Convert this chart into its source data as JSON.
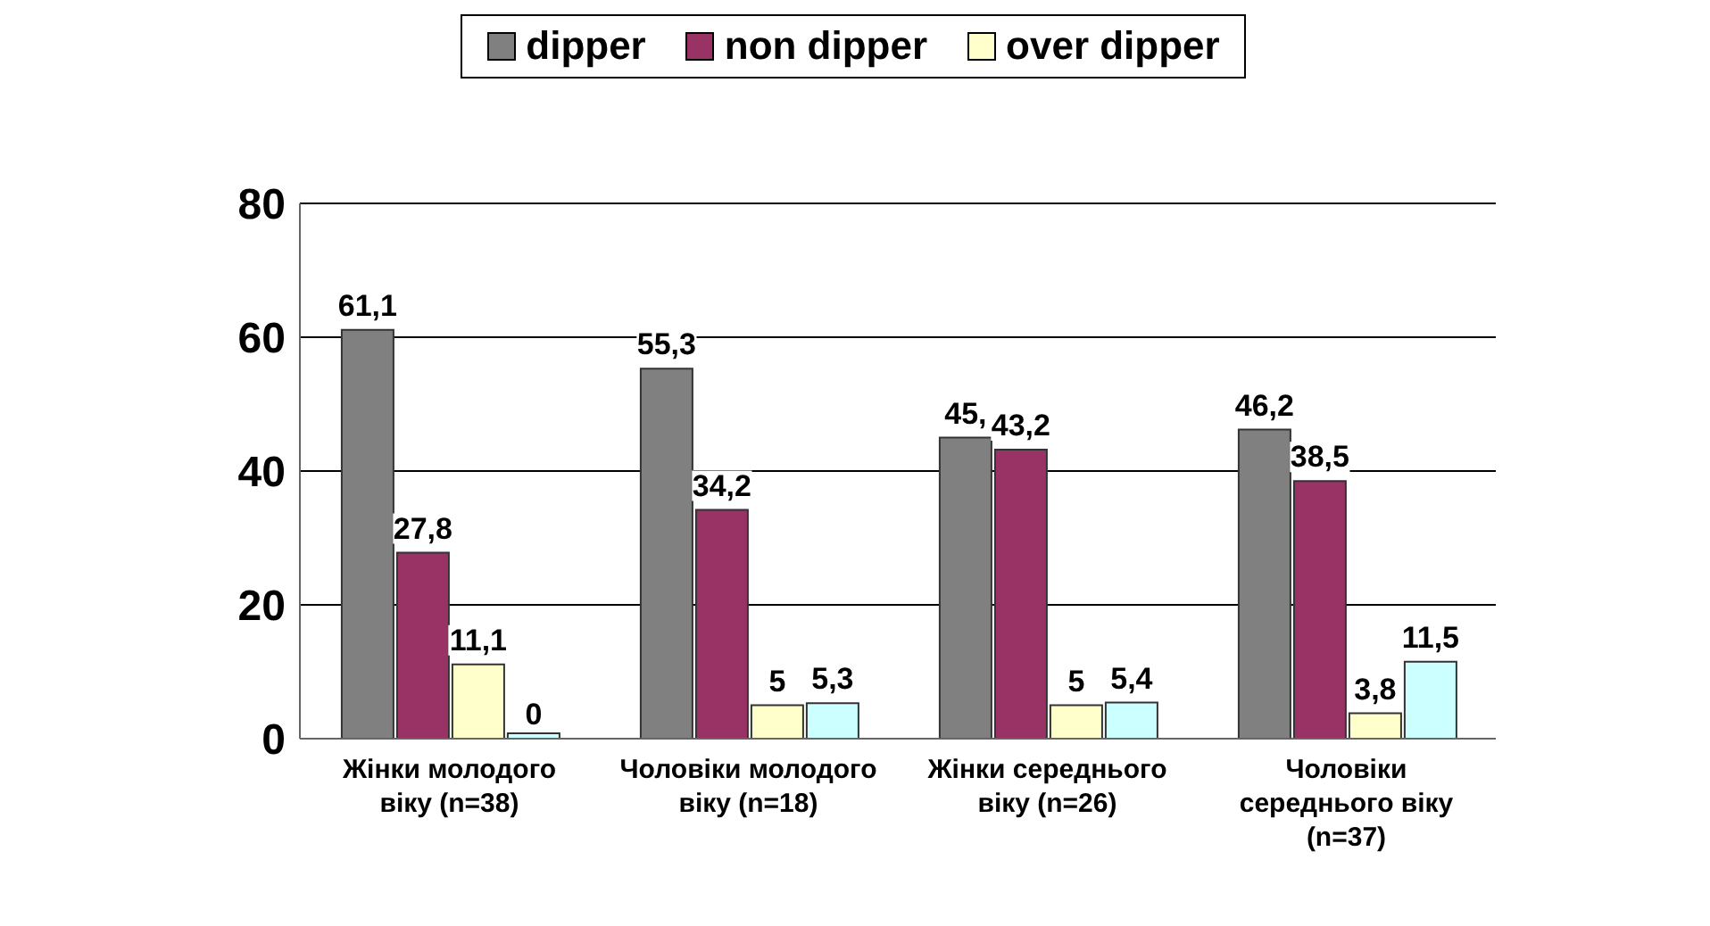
{
  "chart_data": {
    "type": "bar",
    "categories": [
      "Жінки  молодого віку (n=38)",
      "Чоловіки молодого віку (n=18)",
      "Жінки середнього віку (n=26)",
      "Чоловіки середнього віку (n=37)"
    ],
    "series": [
      {
        "name": "dipper",
        "color": "#808080",
        "values": [
          61.1,
          55.3,
          45,
          46.2
        ],
        "value_labels": [
          "61,1",
          "55,3",
          "45,",
          "46,2"
        ]
      },
      {
        "name": "non dipper",
        "color": "#993366",
        "values": [
          27.8,
          34.2,
          43.2,
          38.5
        ],
        "value_labels": [
          "27,8",
          "34,2",
          "43,2",
          "38,5"
        ]
      },
      {
        "name": "over dipper",
        "color": "#ffffcc",
        "values": [
          11.1,
          5,
          5,
          3.8
        ],
        "value_labels": [
          "11,1",
          "5",
          "5",
          "3,8"
        ]
      },
      {
        "color": "#ccffff",
        "values": [
          0,
          5.3,
          5.4,
          11.5
        ],
        "value_labels": [
          "0",
          "5,3",
          "5,4",
          "11,5"
        ]
      }
    ],
    "ylim": [
      0,
      80
    ],
    "yticks": [
      0,
      20,
      40,
      60,
      80
    ],
    "grid": "y",
    "legend": "top"
  }
}
